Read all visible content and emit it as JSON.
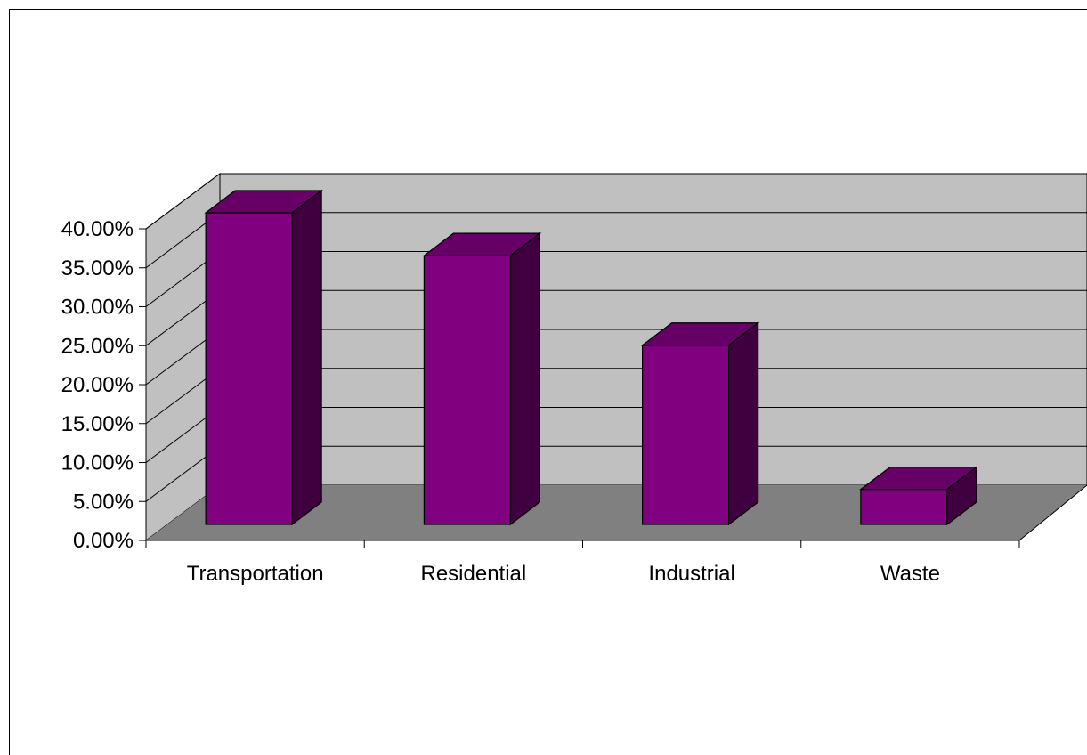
{
  "chart_data": {
    "type": "bar",
    "categories": [
      "Transportation",
      "Residential",
      "Industrial",
      "Waste"
    ],
    "values": [
      0.4,
      0.345,
      0.23,
      0.045
    ],
    "ylim": [
      0,
      0.4
    ],
    "yticks": [
      "0.00%",
      "5.00%",
      "10.00%",
      "15.00%",
      "20.00%",
      "25.00%",
      "30.00%",
      "35.00%",
      "40.00%"
    ],
    "grid": true,
    "style": "3d-column",
    "colors": {
      "bar_front": "#800080",
      "bar_top": "#660066",
      "bar_side": "#400040",
      "back_wall": "#c0c0c0",
      "side_wall": "#c0c0c0",
      "floor": "#808080"
    }
  }
}
